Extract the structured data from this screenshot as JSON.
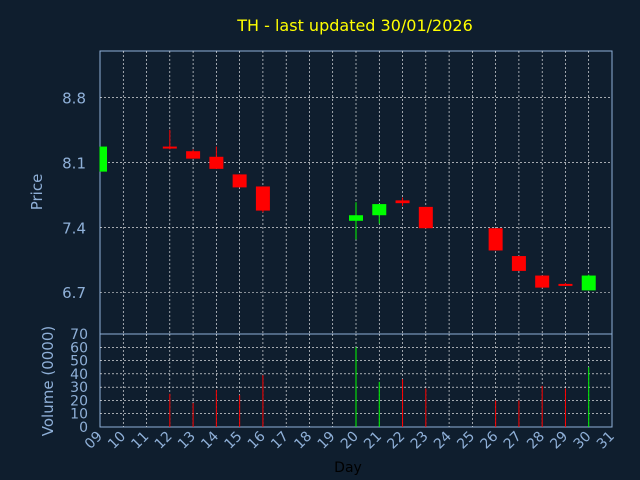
{
  "chart_data": {
    "type": "candlestick",
    "title": "TH - last updated 30/01/2026",
    "price_panel": {
      "ylabel": "Price",
      "yticks": [
        "6.7",
        "7.4",
        "8.1",
        "8.8"
      ],
      "ylim": [
        6.25,
        9.3
      ]
    },
    "volume_panel": {
      "ylabel": "Volume (0000)",
      "yticks": [
        "0",
        "10",
        "20",
        "30",
        "40",
        "50",
        "60",
        "70"
      ],
      "ylim": [
        0,
        70
      ]
    },
    "xlabel": "Day",
    "xticks": [
      "09",
      "10",
      "11",
      "12",
      "13",
      "14",
      "15",
      "16",
      "17",
      "18",
      "19",
      "20",
      "21",
      "22",
      "23",
      "24",
      "25",
      "26",
      "27",
      "28",
      "29",
      "30",
      "31"
    ],
    "colors": {
      "up": "#00ff00",
      "down": "#ff0000",
      "grid": "#ffffff",
      "axis": "#8fb0d8",
      "title": "#ffff00"
    },
    "candles": [
      {
        "day": "09",
        "open": 8.0,
        "high": 8.27,
        "low": 8.0,
        "close": 8.27,
        "volume": 0
      },
      {
        "day": "12",
        "open": 8.27,
        "high": 8.45,
        "low": 8.24,
        "close": 8.25,
        "volume": 25
      },
      {
        "day": "13",
        "open": 8.22,
        "high": 8.24,
        "low": 8.14,
        "close": 8.14,
        "volume": 18
      },
      {
        "day": "14",
        "open": 8.16,
        "high": 8.27,
        "low": 8.03,
        "close": 8.03,
        "volume": 28
      },
      {
        "day": "15",
        "open": 7.97,
        "high": 7.97,
        "low": 7.83,
        "close": 7.83,
        "volume": 24
      },
      {
        "day": "16",
        "open": 7.84,
        "high": 7.84,
        "low": 7.56,
        "close": 7.58,
        "volume": 39
      },
      {
        "day": "20",
        "open": 7.47,
        "high": 7.67,
        "low": 7.27,
        "close": 7.53,
        "volume": 60
      },
      {
        "day": "21",
        "open": 7.53,
        "high": 7.65,
        "low": 7.44,
        "close": 7.65,
        "volume": 34
      },
      {
        "day": "22",
        "open": 7.69,
        "high": 7.72,
        "low": 7.63,
        "close": 7.66,
        "volume": 36
      },
      {
        "day": "23",
        "open": 7.62,
        "high": 7.62,
        "low": 7.39,
        "close": 7.39,
        "volume": 29
      },
      {
        "day": "26",
        "open": 7.39,
        "high": 7.39,
        "low": 7.15,
        "close": 7.15,
        "volume": 20
      },
      {
        "day": "27",
        "open": 7.09,
        "high": 7.09,
        "low": 6.93,
        "close": 6.93,
        "volume": 20
      },
      {
        "day": "28",
        "open": 6.88,
        "high": 6.88,
        "low": 6.75,
        "close": 6.75,
        "volume": 31
      },
      {
        "day": "29",
        "open": 6.79,
        "high": 6.8,
        "low": 6.77,
        "close": 6.78,
        "volume": 29
      },
      {
        "day": "30",
        "open": 6.72,
        "high": 6.89,
        "low": 6.72,
        "close": 6.88,
        "volume": 45
      }
    ]
  }
}
